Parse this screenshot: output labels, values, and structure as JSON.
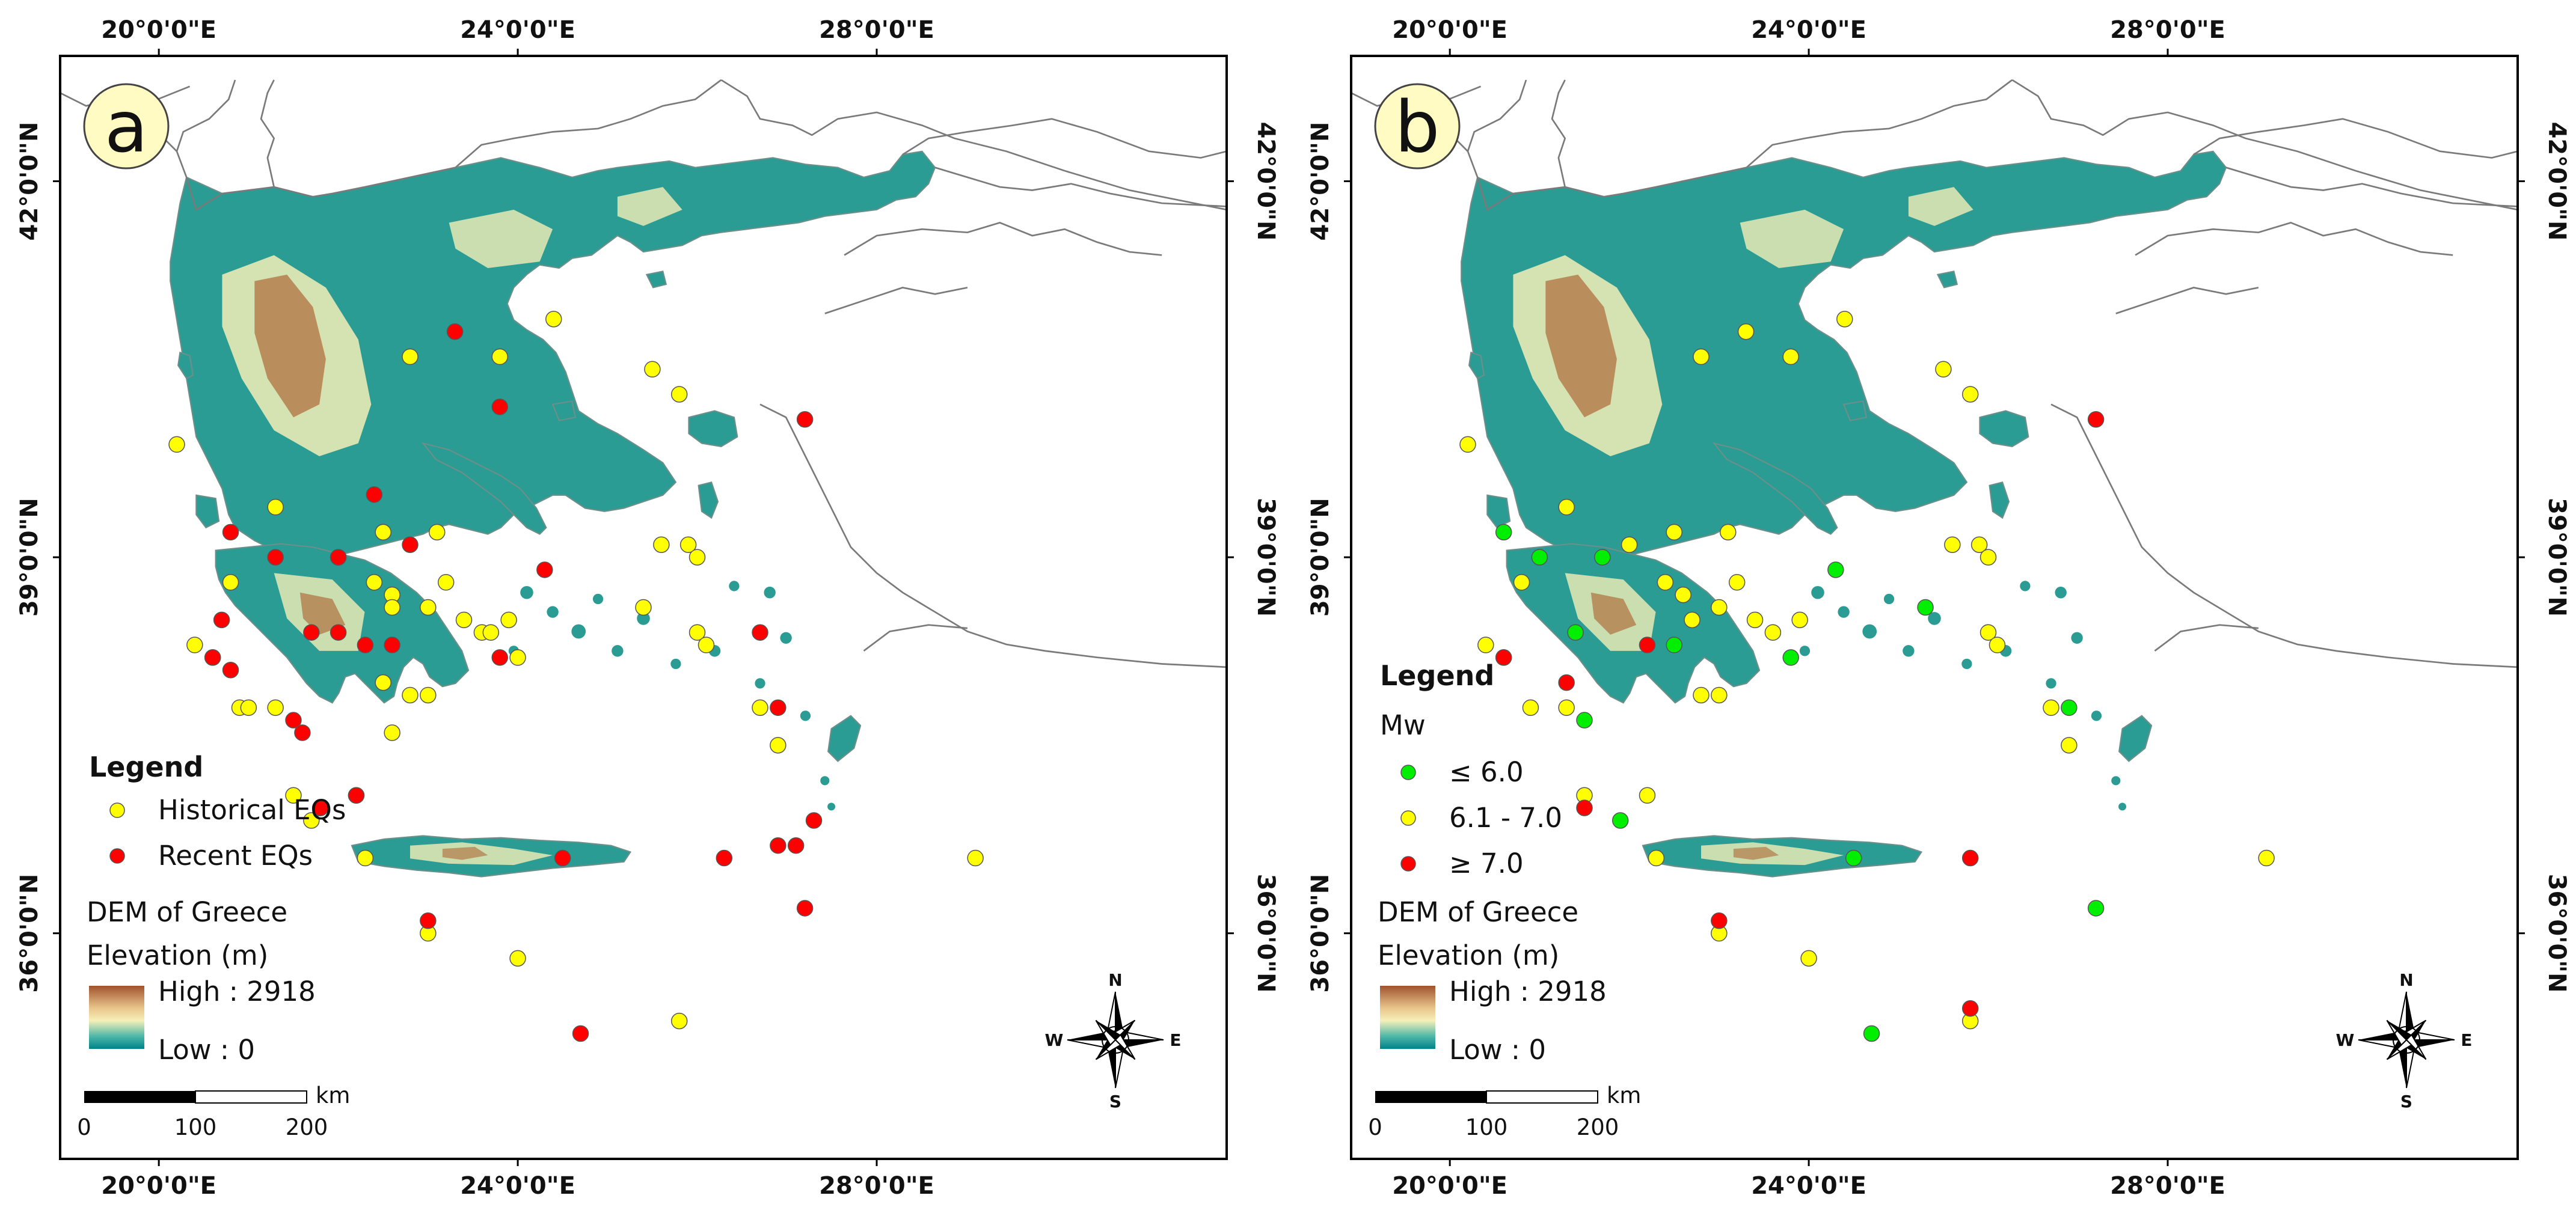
{
  "coordinate_labels": {
    "lon": [
      "20°0'0\"E",
      "24°0'0\"E",
      "28°0'0\"E"
    ],
    "lat": [
      "42°0'0\"N",
      "39°0'0\"N",
      "36°0'0\"N"
    ]
  },
  "colors": {
    "historical": "#ffff00",
    "recent": "#ff0000",
    "mw_low": "#00ee00",
    "mw_mid": "#ffff00",
    "mw_high": "#ff0000",
    "dem_high": "#a0522d",
    "dem_mid": "#f6f0b8",
    "dem_low": "#00838a",
    "border": "#7a7a7a"
  },
  "panels": [
    {
      "id": "a",
      "label": "a",
      "legend": {
        "title": "Legend",
        "items": [
          {
            "label": "Historical EQs",
            "color": "#ffff00"
          },
          {
            "label": "Recent EQs",
            "color": "#ff0000"
          }
        ],
        "dem_title": "DEM of Greece",
        "elev_title": "Elevation (m)",
        "high": "High : 2918",
        "low": "Low : 0"
      },
      "scale": {
        "ticks": [
          "0",
          "100",
          "200"
        ],
        "unit": "km"
      },
      "compass": {
        "n": "N",
        "s": "S",
        "e": "E",
        "w": "W"
      }
    },
    {
      "id": "b",
      "label": "b",
      "legend": {
        "title": "Legend",
        "subtitle": "Mw",
        "items": [
          {
            "label": "≤ 6.0",
            "color": "#00ee00"
          },
          {
            "label": "6.1 - 7.0",
            "color": "#ffff00"
          },
          {
            "label": "≥ 7.0",
            "color": "#ff0000"
          }
        ],
        "dem_title": "DEM of Greece",
        "elev_title": "Elevation (m)",
        "high": "High : 2918",
        "low": "Low : 0"
      },
      "scale": {
        "ticks": [
          "0",
          "100",
          "200"
        ],
        "unit": "km"
      },
      "compass": {
        "n": "N",
        "s": "S",
        "e": "E",
        "w": "W"
      }
    }
  ],
  "map_data": {
    "extent": {
      "lon": [
        18.9,
        31.9
      ],
      "lat": [
        34.2,
        43.0
      ]
    },
    "historical_eqs": [
      [
        20.2,
        39.9
      ],
      [
        22.8,
        40.6
      ],
      [
        23.3,
        40.8
      ],
      [
        23.8,
        40.6
      ],
      [
        24.4,
        40.9
      ],
      [
        25.5,
        40.5
      ],
      [
        25.8,
        40.3
      ],
      [
        21.3,
        39.4
      ],
      [
        22.5,
        39.2
      ],
      [
        23.1,
        39.2
      ],
      [
        22.0,
        39.0
      ],
      [
        25.6,
        39.1
      ],
      [
        25.9,
        39.1
      ],
      [
        26.0,
        39.0
      ],
      [
        20.8,
        38.8
      ],
      [
        22.4,
        38.8
      ],
      [
        22.6,
        38.7
      ],
      [
        22.6,
        38.6
      ],
      [
        23.2,
        38.8
      ],
      [
        23.0,
        38.6
      ],
      [
        23.4,
        38.5
      ],
      [
        23.6,
        38.4
      ],
      [
        23.7,
        38.4
      ],
      [
        23.9,
        38.5
      ],
      [
        24.0,
        38.2
      ],
      [
        26.0,
        38.4
      ],
      [
        26.1,
        38.3
      ],
      [
        25.4,
        38.6
      ],
      [
        20.4,
        38.3
      ],
      [
        20.6,
        38.2
      ],
      [
        20.9,
        37.8
      ],
      [
        21.0,
        37.8
      ],
      [
        21.3,
        37.8
      ],
      [
        22.5,
        38.0
      ],
      [
        22.8,
        37.9
      ],
      [
        23.0,
        37.9
      ],
      [
        22.6,
        37.6
      ],
      [
        21.5,
        37.1
      ],
      [
        21.8,
        37.0
      ],
      [
        22.2,
        37.1
      ],
      [
        21.7,
        36.9
      ],
      [
        22.3,
        36.6
      ],
      [
        26.7,
        37.8
      ],
      [
        26.9,
        37.5
      ],
      [
        29.1,
        36.6
      ],
      [
        23.0,
        36.0
      ],
      [
        24.0,
        35.8
      ],
      [
        25.8,
        35.3
      ]
    ],
    "recent_eqs": [
      [
        23.3,
        40.8
      ],
      [
        23.8,
        40.2
      ],
      [
        27.2,
        40.1
      ],
      [
        20.8,
        39.2
      ],
      [
        21.3,
        39.0
      ],
      [
        22.0,
        39.0
      ],
      [
        22.8,
        39.1
      ],
      [
        22.4,
        39.5
      ],
      [
        24.3,
        38.9
      ],
      [
        21.7,
        38.4
      ],
      [
        22.0,
        38.4
      ],
      [
        20.6,
        38.2
      ],
      [
        22.3,
        38.3
      ],
      [
        22.6,
        38.3
      ],
      [
        23.8,
        38.2
      ],
      [
        26.7,
        38.4
      ],
      [
        20.8,
        38.1
      ],
      [
        21.5,
        37.7
      ],
      [
        21.6,
        37.6
      ],
      [
        20.7,
        38.5
      ],
      [
        26.9,
        37.8
      ],
      [
        22.2,
        37.1
      ],
      [
        21.8,
        37.0
      ],
      [
        24.5,
        36.6
      ],
      [
        26.3,
        36.6
      ],
      [
        26.9,
        36.7
      ],
      [
        27.1,
        36.7
      ],
      [
        27.3,
        36.9
      ],
      [
        23.0,
        36.1
      ],
      [
        27.2,
        36.2
      ],
      [
        24.7,
        35.2
      ]
    ],
    "mw_low": [
      [
        20.6,
        39.2
      ],
      [
        21.0,
        39.0
      ],
      [
        21.7,
        39.0
      ],
      [
        24.3,
        38.9
      ],
      [
        25.3,
        38.6
      ],
      [
        21.4,
        38.4
      ],
      [
        22.5,
        38.3
      ],
      [
        23.8,
        38.2
      ],
      [
        26.9,
        37.8
      ],
      [
        21.5,
        37.7
      ],
      [
        21.9,
        36.9
      ],
      [
        24.5,
        36.6
      ],
      [
        27.2,
        36.2
      ],
      [
        24.7,
        35.2
      ]
    ],
    "mw_mid": [
      [
        20.2,
        39.9
      ],
      [
        22.8,
        40.6
      ],
      [
        23.3,
        40.8
      ],
      [
        23.8,
        40.6
      ],
      [
        24.4,
        40.9
      ],
      [
        25.5,
        40.5
      ],
      [
        25.8,
        40.3
      ],
      [
        21.3,
        39.4
      ],
      [
        22.5,
        39.2
      ],
      [
        23.1,
        39.2
      ],
      [
        22.0,
        39.1
      ],
      [
        25.6,
        39.1
      ],
      [
        25.9,
        39.1
      ],
      [
        26.0,
        39.0
      ],
      [
        20.8,
        38.8
      ],
      [
        22.4,
        38.8
      ],
      [
        22.6,
        38.7
      ],
      [
        23.2,
        38.8
      ],
      [
        23.0,
        38.6
      ],
      [
        23.4,
        38.5
      ],
      [
        23.6,
        38.4
      ],
      [
        23.9,
        38.5
      ],
      [
        26.0,
        38.4
      ],
      [
        26.1,
        38.3
      ],
      [
        20.4,
        38.3
      ],
      [
        20.6,
        38.2
      ],
      [
        20.9,
        37.8
      ],
      [
        21.3,
        37.8
      ],
      [
        22.8,
        37.9
      ],
      [
        23.0,
        37.9
      ],
      [
        21.5,
        37.1
      ],
      [
        22.2,
        37.1
      ],
      [
        22.3,
        36.6
      ],
      [
        26.7,
        37.8
      ],
      [
        26.9,
        37.5
      ],
      [
        29.1,
        36.6
      ],
      [
        23.0,
        36.0
      ],
      [
        24.0,
        35.8
      ],
      [
        25.8,
        35.3
      ],
      [
        22.7,
        38.5
      ]
    ],
    "mw_high": [
      [
        27.2,
        40.1
      ],
      [
        20.6,
        38.2
      ],
      [
        21.3,
        38.0
      ],
      [
        22.2,
        38.3
      ],
      [
        21.5,
        37.0
      ],
      [
        25.8,
        36.6
      ],
      [
        23.0,
        36.1
      ],
      [
        25.8,
        35.4
      ]
    ]
  }
}
